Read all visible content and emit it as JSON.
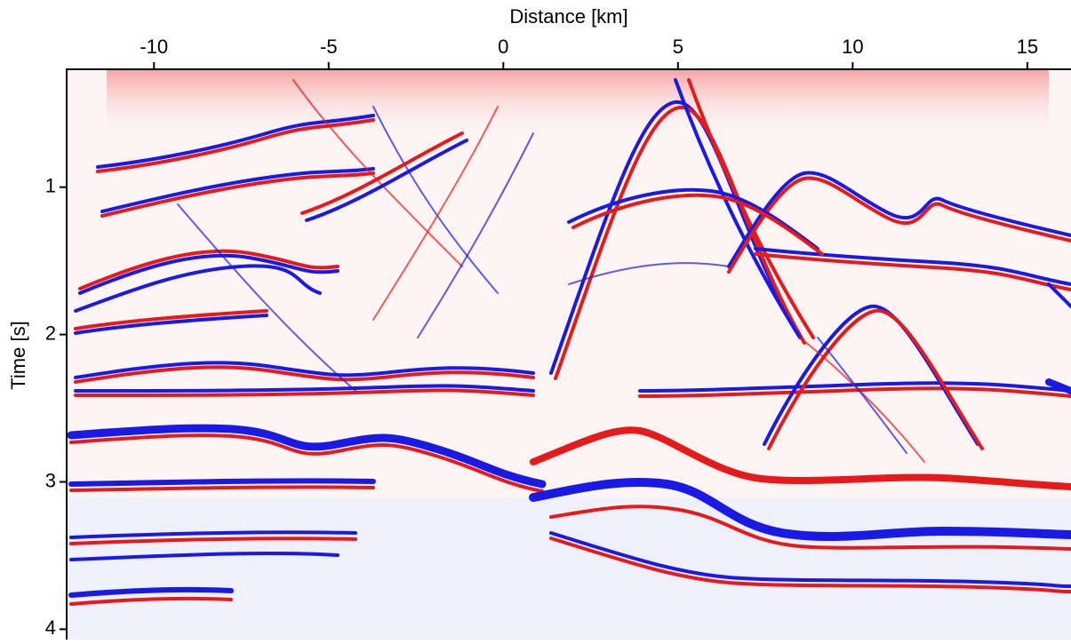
{
  "chart_data": {
    "type": "image",
    "x_label": "Distance [km]",
    "y_label": "Time [s]",
    "xlim": [
      -12.5,
      16.25
    ],
    "ylim": [
      4.07,
      0.2
    ],
    "xticks": [
      -10,
      -5,
      0,
      5,
      10,
      15
    ],
    "yticks": [
      1,
      2,
      3,
      4
    ],
    "x_axis_position": "top"
  }
}
